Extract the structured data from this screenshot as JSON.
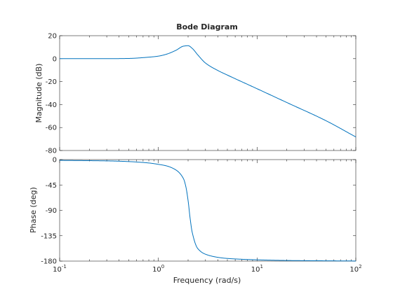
{
  "chart_data": {
    "type": "line",
    "title": "Bode Diagram",
    "xlabel": "Frequency  (rad/s)",
    "x_scale": "log",
    "xlim": [
      0.1,
      100
    ],
    "x_ticks": [
      {
        "base": "10",
        "exp": "-1"
      },
      {
        "base": "10",
        "exp": "0"
      },
      {
        "base": "10",
        "exp": "1"
      },
      {
        "base": "10",
        "exp": "2"
      }
    ],
    "grid": false,
    "subplots": [
      {
        "ylabel": "Magnitude (dB)",
        "ylim": [
          -80,
          20
        ],
        "y_ticks": [
          20,
          0,
          -20,
          -40,
          -60,
          -80
        ],
        "series": [
          {
            "color": "#0072bd",
            "x": [
              0.1,
              0.3,
              0.5,
              0.8,
              1.0,
              1.2,
              1.5,
              1.8,
              2.0,
              2.2,
              2.5,
              3.0,
              4.0,
              5.0,
              10,
              20,
              50,
              100
            ],
            "y": [
              0,
              0,
              0.2,
              1.3,
              2.2,
              3.8,
              7.2,
              10.9,
              11.3,
              9.0,
              3.4,
              -3.8,
              -10.3,
              -14.3,
              -26.2,
              -38.2,
              -54.1,
              -68.2
            ]
          }
        ]
      },
      {
        "ylabel": "Phase (deg)",
        "ylim": [
          -180,
          0
        ],
        "y_ticks": [
          0,
          -45,
          -90,
          -135,
          -180
        ],
        "series": [
          {
            "color": "#0072bd",
            "x": [
              0.1,
              0.3,
              0.5,
              0.8,
              1.0,
              1.2,
              1.5,
              1.8,
              1.9,
              2.0,
              2.1,
              2.2,
              2.5,
              3.0,
              4.0,
              5.0,
              10,
              20,
              50,
              100
            ],
            "y": [
              -1.4,
              -2.3,
              -3.5,
              -6.0,
              -8.4,
              -11.0,
              -18.2,
              -34.2,
              -48.3,
              -72.7,
              -104.9,
              -128.6,
              -157.5,
              -167.8,
              -173.3,
              -175.3,
              -177.7,
              -178.9,
              -179.5,
              -179.8
            ]
          }
        ]
      }
    ]
  }
}
